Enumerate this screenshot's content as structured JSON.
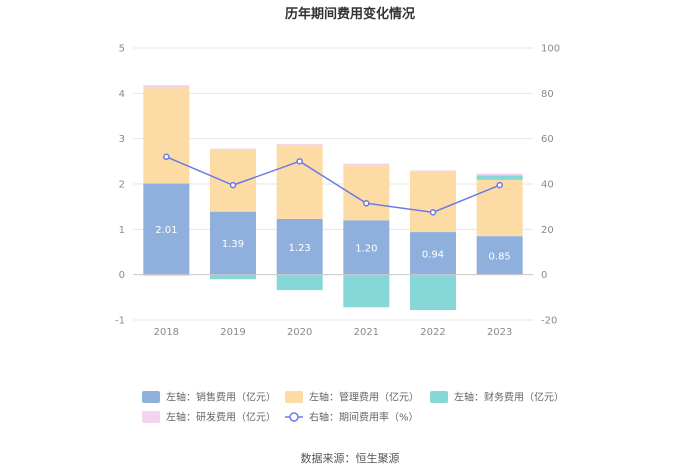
{
  "chart_data": {
    "type": "bar",
    "title": "历年期间费用变化情况",
    "source": "数据来源：恒生聚源",
    "categories": [
      "2018",
      "2019",
      "2020",
      "2021",
      "2022",
      "2023"
    ],
    "left_axis": {
      "ylim": [
        -1,
        5
      ],
      "ticks": [
        "-1",
        "0",
        "1",
        "2",
        "3",
        "4",
        "5"
      ]
    },
    "right_axis": {
      "ylim": [
        -20,
        100
      ],
      "ticks": [
        "-20",
        "0",
        "20",
        "40",
        "60",
        "80",
        "100"
      ]
    },
    "series": [
      {
        "name": "左轴：销售费用（亿元）",
        "kind": "bar",
        "color": "#8fb0dd",
        "values": [
          2.01,
          1.39,
          1.23,
          1.2,
          0.94,
          0.85
        ],
        "labels": [
          "2.01",
          "1.39",
          "1.23",
          "1.20",
          "0.94",
          "0.85"
        ]
      },
      {
        "name": "左轴：管理费用（亿元）",
        "kind": "bar",
        "color": "#fddba5",
        "values": [
          2.13,
          1.36,
          1.62,
          1.22,
          1.33,
          1.24
        ]
      },
      {
        "name": "左轴：财务费用（亿元）",
        "kind": "bar",
        "color": "#86d7d8",
        "values": [
          -0.02,
          -0.1,
          -0.34,
          -0.72,
          -0.78,
          0.1
        ]
      },
      {
        "name": "左轴：研发费用（亿元）",
        "kind": "bar",
        "color": "#f3d3ee",
        "values": [
          0.04,
          0.03,
          0.03,
          0.03,
          0.03,
          0.04
        ]
      },
      {
        "name": "右轴：期间费用率（%）",
        "kind": "line",
        "color": "#6b7be6",
        "values": [
          52,
          39.5,
          50,
          31.5,
          27.5,
          39.5
        ]
      }
    ],
    "grid": true,
    "legend_position": "bottom"
  }
}
